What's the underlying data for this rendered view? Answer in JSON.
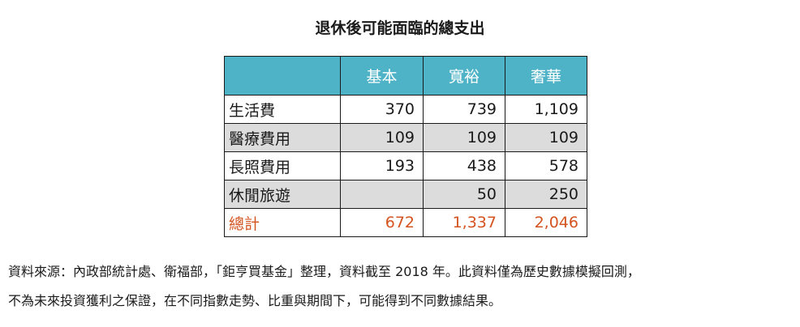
{
  "chart_data": {
    "type": "table",
    "title": "退休後可能面臨的總支出",
    "columns": [
      "基本",
      "寬裕",
      "奢華"
    ],
    "rows": [
      {
        "label": "生活費",
        "values": [
          "370",
          "739",
          "1,109"
        ]
      },
      {
        "label": "醫療費用",
        "values": [
          "109",
          "109",
          "109"
        ]
      },
      {
        "label": "長照費用",
        "values": [
          "193",
          "438",
          "578"
        ]
      },
      {
        "label": "休閒旅遊",
        "values": [
          "",
          "50",
          "250"
        ]
      }
    ],
    "total": {
      "label": "總計",
      "values": [
        "672",
        "1,337",
        "2,046"
      ]
    },
    "colors": {
      "header_bg": "#4fb3c7",
      "shaded_row_bg": "#dcdcdc",
      "total_text": "#d4531f"
    }
  },
  "notes": {
    "line1": "資料來源：內政部統計處、衛福部，「鉅亨買基金」整理，資料截至 2018 年。此資料僅為歷史數據模擬回測，",
    "line2": "不為未來投資獲利之保證，在不同指數走勢、比重與期間下，可能得到不同數據結果。"
  }
}
